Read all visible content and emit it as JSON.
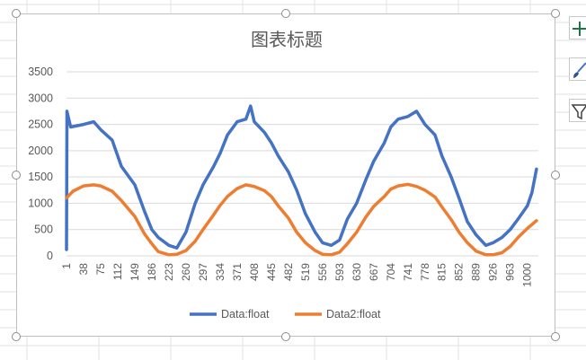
{
  "chart_data": {
    "type": "line",
    "title": "图表标题",
    "ylim": [
      0,
      3500
    ],
    "yticks": [
      0,
      500,
      1000,
      1500,
      2000,
      2500,
      3000,
      3500
    ],
    "x_range": [
      1,
      1024
    ],
    "xticks": [
      1,
      38,
      75,
      112,
      149,
      186,
      223,
      260,
      297,
      334,
      371,
      408,
      445,
      482,
      519,
      556,
      593,
      630,
      667,
      704,
      741,
      778,
      815,
      852,
      889,
      926,
      963,
      1000
    ],
    "grid": "horizontal",
    "legend": "bottom",
    "series": [
      {
        "name": "Data:float",
        "color": "#4472c4",
        "x": [
          1,
          2,
          10,
          38,
          60,
          75,
          100,
          120,
          149,
          170,
          186,
          200,
          223,
          240,
          260,
          280,
          297,
          320,
          334,
          350,
          371,
          390,
          400,
          408,
          430,
          445,
          460,
          482,
          500,
          519,
          540,
          556,
          575,
          593,
          610,
          630,
          650,
          667,
          690,
          704,
          720,
          741,
          760,
          778,
          800,
          815,
          835,
          852,
          870,
          889,
          910,
          926,
          945,
          963,
          980,
          1000,
          1010,
          1020
        ],
        "y": [
          120,
          2750,
          2450,
          2500,
          2550,
          2400,
          2200,
          1700,
          1350,
          850,
          500,
          350,
          200,
          150,
          450,
          1000,
          1350,
          1700,
          1950,
          2300,
          2550,
          2600,
          2850,
          2550,
          2350,
          2150,
          1900,
          1600,
          1250,
          800,
          450,
          250,
          200,
          300,
          700,
          1000,
          1450,
          1800,
          2150,
          2450,
          2600,
          2650,
          2750,
          2500,
          2300,
          1900,
          1500,
          1100,
          650,
          400,
          200,
          250,
          350,
          500,
          700,
          950,
          1200,
          1650
        ]
      },
      {
        "name": "Data2:float",
        "color": "#ed7d31",
        "x": [
          1,
          15,
          38,
          60,
          75,
          100,
          120,
          149,
          170,
          186,
          200,
          223,
          240,
          260,
          280,
          297,
          320,
          334,
          350,
          371,
          390,
          408,
          430,
          445,
          460,
          482,
          500,
          519,
          540,
          556,
          575,
          593,
          610,
          630,
          650,
          667,
          690,
          704,
          720,
          741,
          760,
          778,
          800,
          815,
          835,
          852,
          870,
          889,
          910,
          926,
          945,
          963,
          980,
          1000,
          1020
        ],
        "y": [
          1100,
          1230,
          1330,
          1350,
          1330,
          1230,
          1050,
          750,
          420,
          230,
          80,
          20,
          30,
          100,
          280,
          500,
          780,
          960,
          1130,
          1280,
          1350,
          1320,
          1240,
          1130,
          950,
          720,
          450,
          250,
          100,
          30,
          20,
          70,
          230,
          450,
          740,
          940,
          1130,
          1270,
          1330,
          1360,
          1320,
          1250,
          1120,
          930,
          690,
          450,
          250,
          90,
          20,
          20,
          60,
          180,
          350,
          520,
          670
        ]
      }
    ]
  },
  "toolbar": {
    "add_element_icon": "plus-icon",
    "style_icon": "brush-icon",
    "filter_icon": "funnel-icon"
  }
}
